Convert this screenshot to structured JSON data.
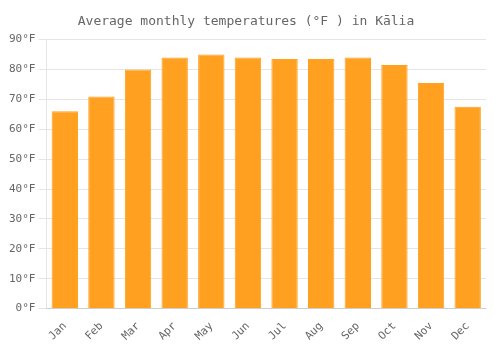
{
  "chart_data": {
    "type": "bar",
    "title": "Average monthly temperatures (°F ) in Kālia",
    "categories": [
      "Jan",
      "Feb",
      "Mar",
      "Apr",
      "May",
      "Jun",
      "Jul",
      "Aug",
      "Sep",
      "Oct",
      "Nov",
      "Dec"
    ],
    "values": [
      66,
      71,
      80,
      84,
      85,
      84,
      83.5,
      83.5,
      84,
      81.5,
      75.5,
      67.5
    ],
    "color": "#FFA020",
    "ylim": [
      0,
      90
    ],
    "yticks": [
      {
        "value": 0,
        "label": "0°F"
      },
      {
        "value": 10,
        "label": "10°F"
      },
      {
        "value": 20,
        "label": "20°F"
      },
      {
        "value": 30,
        "label": "30°F"
      },
      {
        "value": 40,
        "label": "40°F"
      },
      {
        "value": 50,
        "label": "50°F"
      },
      {
        "value": 60,
        "label": "60°F"
      },
      {
        "value": 70,
        "label": "70°F"
      },
      {
        "value": 80,
        "label": "80°F"
      },
      {
        "value": 90,
        "label": "90°F"
      }
    ],
    "grid": true
  }
}
